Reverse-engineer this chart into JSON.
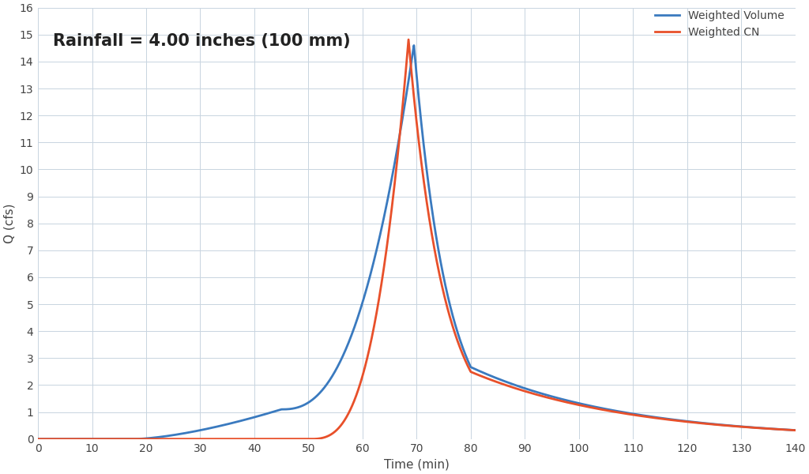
{
  "annotation": "Rainfall = 4.00 inches (100 mm)",
  "xlabel": "Time (min)",
  "ylabel": "Q (cfs)",
  "xlim": [
    0,
    140
  ],
  "ylim": [
    0,
    16
  ],
  "xticks": [
    0,
    10,
    20,
    30,
    40,
    50,
    60,
    70,
    80,
    90,
    100,
    110,
    120,
    130,
    140
  ],
  "yticks": [
    0,
    1,
    2,
    3,
    4,
    5,
    6,
    7,
    8,
    9,
    10,
    11,
    12,
    13,
    14,
    15,
    16
  ],
  "bg_color": "#ffffff",
  "plot_bg_color": "#ffffff",
  "grid_color": "#c8d4e0",
  "cn_color": "#e8502a",
  "vol_color": "#3a7abf",
  "legend_cn": "Weighted CN",
  "legend_vol": "Weighted Volume",
  "line_width": 2.0,
  "annotation_fontsize": 15,
  "axis_label_fontsize": 11,
  "tick_fontsize": 10,
  "legend_fontsize": 10,
  "peak_cn": 14.82,
  "peak_vol": 14.62,
  "t_peak_cn": 68.5,
  "t_peak_vol": 69.5
}
